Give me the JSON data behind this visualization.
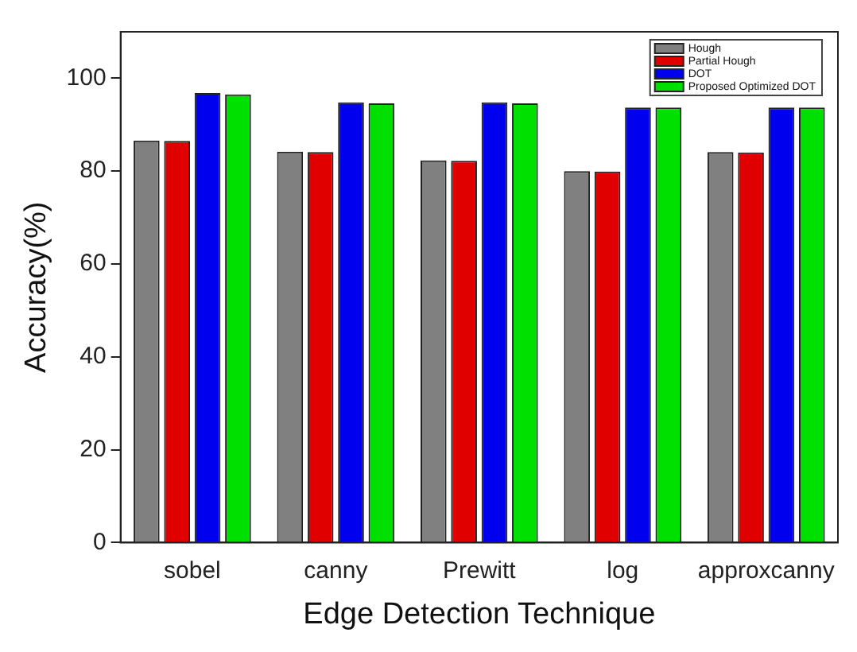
{
  "chart_data": {
    "type": "bar",
    "xlabel": "Edge Detection Technique",
    "ylabel": "Accuracy(%)",
    "categories": [
      "sobel",
      "canny",
      "Prewitt",
      "log",
      "approxcanny"
    ],
    "series": [
      {
        "name": "Hough",
        "color": "#808080",
        "values": [
          86.6,
          84.2,
          82.3,
          80.0,
          84.1
        ]
      },
      {
        "name": "Partial Hough",
        "color": "#e00000",
        "values": [
          86.5,
          84.1,
          82.2,
          79.9,
          84.0
        ]
      },
      {
        "name": "DOT",
        "color": "#0000ee",
        "values": [
          96.8,
          94.8,
          94.8,
          93.7,
          93.7
        ]
      },
      {
        "name": "Proposed Optimized DOT",
        "color": "#00e000",
        "values": [
          96.5,
          94.6,
          94.6,
          93.7,
          93.7
        ]
      }
    ],
    "ylim": [
      0,
      110
    ],
    "yticks": [
      0,
      20,
      40,
      60,
      80,
      100
    ],
    "grid": false,
    "legend": "top right"
  }
}
